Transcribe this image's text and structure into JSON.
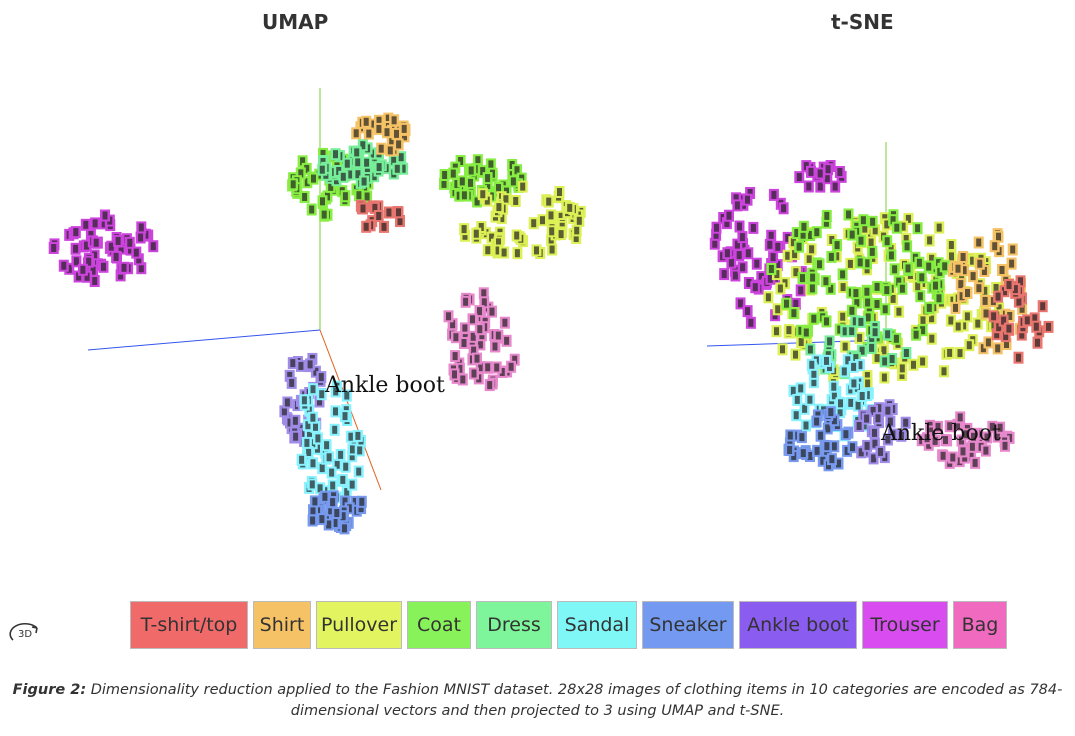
{
  "chart_data": [
    {
      "type": "scatter",
      "title": "UMAP",
      "dimensions": 3,
      "annotation": "Ankle boot",
      "clusters": [
        {
          "category": "Trouser",
          "color": "#cc44dd"
        },
        {
          "category": "Coat",
          "color": "#88ee44"
        },
        {
          "category": "Dress",
          "color": "#77ee99"
        },
        {
          "category": "Pullover",
          "color": "#ddf055"
        },
        {
          "category": "Shirt",
          "color": "#f5c265"
        },
        {
          "category": "T-shirt/top",
          "color": "#e9756f"
        },
        {
          "category": "Bag",
          "color": "#e888cc"
        },
        {
          "category": "Sandal",
          "color": "#88f2ff"
        },
        {
          "category": "Sneaker",
          "color": "#7799ee"
        },
        {
          "category": "Ankle boot",
          "color": "#a08ce8"
        }
      ]
    },
    {
      "type": "scatter",
      "title": "t-SNE",
      "dimensions": 3,
      "annotation": "Ankle boot",
      "clusters": [
        {
          "category": "Trouser",
          "color": "#cc44dd"
        },
        {
          "category": "Pullover",
          "color": "#ddf055"
        },
        {
          "category": "Coat",
          "color": "#88ee44"
        },
        {
          "category": "Shirt",
          "color": "#f5c265"
        },
        {
          "category": "T-shirt/top",
          "color": "#e9756f"
        },
        {
          "category": "Dress",
          "color": "#77ee99"
        },
        {
          "category": "Sandal",
          "color": "#88f2ff"
        },
        {
          "category": "Sneaker",
          "color": "#7799ee"
        },
        {
          "category": "Ankle boot",
          "color": "#a08ce8"
        },
        {
          "category": "Bag",
          "color": "#e888cc"
        }
      ]
    }
  ],
  "legend": [
    {
      "label": "T-shirt/top",
      "color": "#f06a6a"
    },
    {
      "label": "Shirt",
      "color": "#f5c265"
    },
    {
      "label": "Pullover",
      "color": "#e2f560"
    },
    {
      "label": "Coat",
      "color": "#88f25a"
    },
    {
      "label": "Dress",
      "color": "#7ef59a"
    },
    {
      "label": "Sandal",
      "color": "#80f7f7"
    },
    {
      "label": "Sneaker",
      "color": "#7399f0"
    },
    {
      "label": "Ankle boot",
      "color": "#8b5cf0"
    },
    {
      "label": "Trouser",
      "color": "#d94cf0"
    },
    {
      "label": "Bag",
      "color": "#f06abf"
    }
  ],
  "rotate_icon": "3d-rotate-icon",
  "rotate_label": "3D",
  "caption": {
    "figure_label": "Figure 2:",
    "text": "Dimensionality reduction applied to the Fashion MNIST dataset. 28x28 images of clothing items in 10 categories are encoded as 784-dimensional vectors and then projected to 3 using UMAP and t-SNE."
  }
}
